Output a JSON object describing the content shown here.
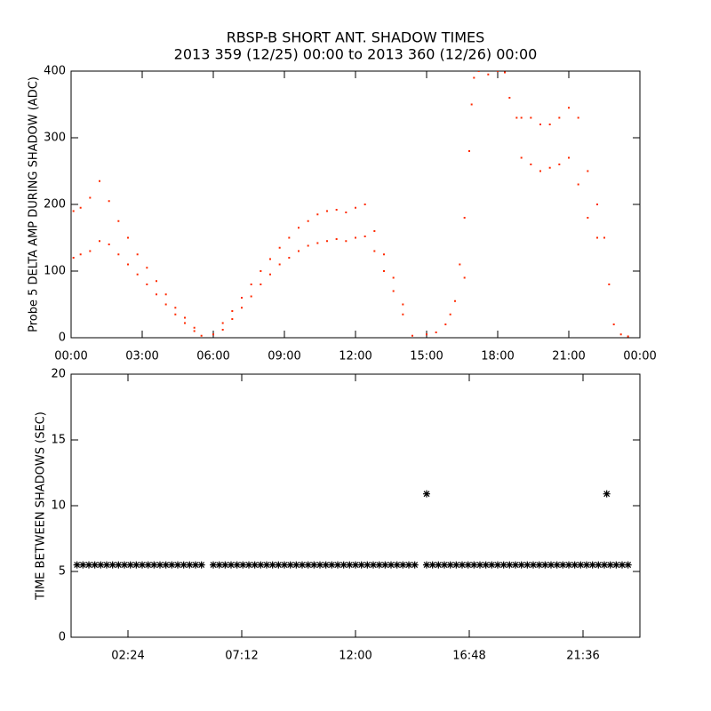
{
  "chart_data": [
    {
      "type": "scatter",
      "title": "RBSP-B SHORT ANT. SHADOW TIMES",
      "subtitle": "2013 359 (12/25) 00:00 to 2013 360 (12/26) 00:00",
      "y_label": "Probe 5 DELTA AMP DURING SHADOW (ADC)",
      "x": [
        0.1,
        0.1,
        0.4,
        0.4,
        0.8,
        0.8,
        1.2,
        1.2,
        1.6,
        1.6,
        2.0,
        2.0,
        2.4,
        2.4,
        2.8,
        2.8,
        3.2,
        3.2,
        3.6,
        3.6,
        4.0,
        4.0,
        4.4,
        4.4,
        4.8,
        4.8,
        5.2,
        5.2,
        5.5,
        6.0,
        6.4,
        6.4,
        6.8,
        6.8,
        7.2,
        7.2,
        7.6,
        7.6,
        8.0,
        8.0,
        8.4,
        8.4,
        8.8,
        8.8,
        9.2,
        9.2,
        9.6,
        9.6,
        10.0,
        10.0,
        10.4,
        10.4,
        10.8,
        10.8,
        11.2,
        11.2,
        11.6,
        11.6,
        12.0,
        12.0,
        12.4,
        12.4,
        12.8,
        12.8,
        13.2,
        13.2,
        13.6,
        13.6,
        14.0,
        14.0,
        14.4,
        15.0,
        15.4,
        15.8,
        16.0,
        16.2,
        16.4,
        16.6,
        16.6,
        16.8,
        16.9,
        17.0,
        17.2,
        17.6,
        18.0,
        18.3,
        18.5,
        18.8,
        19.0,
        19.0,
        19.4,
        19.4,
        19.8,
        19.8,
        20.2,
        20.2,
        20.6,
        20.6,
        21.0,
        21.0,
        21.4,
        21.4,
        21.8,
        21.8,
        22.2,
        22.2,
        22.5,
        22.7,
        22.9,
        23.2,
        23.5
      ],
      "series": [
        {
          "color": "#ff2a00",
          "values": [
            190,
            120,
            195,
            125,
            210,
            130,
            235,
            145,
            205,
            140,
            175,
            125,
            150,
            110,
            125,
            95,
            105,
            80,
            85,
            65,
            65,
            50,
            45,
            35,
            30,
            22,
            15,
            10,
            3,
            5,
            22,
            12,
            40,
            28,
            60,
            45,
            80,
            62,
            100,
            80,
            118,
            95,
            135,
            110,
            150,
            120,
            165,
            130,
            175,
            138,
            185,
            142,
            190,
            145,
            192,
            148,
            188,
            145,
            195,
            150,
            200,
            152,
            160,
            130,
            125,
            100,
            90,
            70,
            50,
            35,
            3,
            5,
            8,
            20,
            35,
            55,
            110,
            180,
            90,
            280,
            350,
            390,
            400,
            395,
            400,
            398,
            360,
            330,
            330,
            270,
            330,
            260,
            320,
            250,
            320,
            255,
            330,
            260,
            345,
            270,
            330,
            230,
            250,
            180,
            200,
            150,
            150,
            80,
            20,
            5,
            2
          ]
        }
      ],
      "xlim": [
        0,
        24
      ],
      "ylim": [
        0,
        400
      ],
      "xticks": [
        {
          "value": 0,
          "label": "00:00"
        },
        {
          "value": 3,
          "label": "03:00"
        },
        {
          "value": 6,
          "label": "06:00"
        },
        {
          "value": 9,
          "label": "09:00"
        },
        {
          "value": 12,
          "label": "12:00"
        },
        {
          "value": 15,
          "label": "15:00"
        },
        {
          "value": 18,
          "label": "18:00"
        },
        {
          "value": 21,
          "label": "21:00"
        },
        {
          "value": 24,
          "label": "00:00"
        }
      ],
      "yticks": [
        0,
        100,
        200,
        300,
        400
      ]
    },
    {
      "type": "scatter",
      "y_label": "TIME BETWEEN SHADOWS (SEC)",
      "x": [
        0.25,
        0.5,
        0.75,
        1.0,
        1.25,
        1.5,
        1.75,
        2.0,
        2.25,
        2.5,
        2.75,
        3.0,
        3.25,
        3.5,
        3.75,
        4.0,
        4.25,
        4.5,
        4.75,
        5.0,
        5.25,
        5.5,
        6.0,
        6.25,
        6.5,
        6.75,
        7.0,
        7.25,
        7.5,
        7.75,
        8.0,
        8.25,
        8.5,
        8.75,
        9.0,
        9.25,
        9.5,
        9.75,
        10.0,
        10.25,
        10.5,
        10.75,
        11.0,
        11.25,
        11.5,
        11.75,
        12.0,
        12.25,
        12.5,
        12.75,
        13.0,
        13.25,
        13.5,
        13.75,
        14.0,
        14.25,
        14.5,
        15.0,
        15.25,
        15.5,
        15.75,
        16.0,
        16.25,
        16.5,
        16.75,
        17.0,
        17.25,
        17.5,
        17.75,
        18.0,
        18.25,
        18.5,
        18.75,
        19.0,
        19.25,
        19.5,
        19.75,
        20.0,
        20.25,
        20.5,
        20.75,
        21.0,
        21.25,
        21.5,
        21.75,
        22.0,
        22.25,
        22.5,
        22.75,
        23.0,
        23.25,
        23.5,
        15.0,
        22.6
      ],
      "series": [
        {
          "color": "#000000",
          "values": [
            5.5,
            5.5,
            5.5,
            5.5,
            5.5,
            5.5,
            5.5,
            5.5,
            5.5,
            5.5,
            5.5,
            5.5,
            5.5,
            5.5,
            5.5,
            5.5,
            5.5,
            5.5,
            5.5,
            5.5,
            5.5,
            5.5,
            5.5,
            5.5,
            5.5,
            5.5,
            5.5,
            5.5,
            5.5,
            5.5,
            5.5,
            5.5,
            5.5,
            5.5,
            5.5,
            5.5,
            5.5,
            5.5,
            5.5,
            5.5,
            5.5,
            5.5,
            5.5,
            5.5,
            5.5,
            5.5,
            5.5,
            5.5,
            5.5,
            5.5,
            5.5,
            5.5,
            5.5,
            5.5,
            5.5,
            5.5,
            5.5,
            5.5,
            5.5,
            5.5,
            5.5,
            5.5,
            5.5,
            5.5,
            5.5,
            5.5,
            5.5,
            5.5,
            5.5,
            5.5,
            5.5,
            5.5,
            5.5,
            5.5,
            5.5,
            5.5,
            5.5,
            5.5,
            5.5,
            5.5,
            5.5,
            5.5,
            5.5,
            5.5,
            5.5,
            5.5,
            5.5,
            5.5,
            5.5,
            5.5,
            5.5,
            5.5,
            10.9,
            10.9
          ]
        }
      ],
      "xlim": [
        0,
        24
      ],
      "ylim": [
        0,
        20
      ],
      "xticks": [
        {
          "value": 2.4,
          "label": "02:24"
        },
        {
          "value": 7.2,
          "label": "07:12"
        },
        {
          "value": 12,
          "label": "12:00"
        },
        {
          "value": 16.8,
          "label": "16:48"
        },
        {
          "value": 21.6,
          "label": "21:36"
        }
      ],
      "yticks": [
        0,
        5,
        10,
        15,
        20
      ]
    }
  ]
}
